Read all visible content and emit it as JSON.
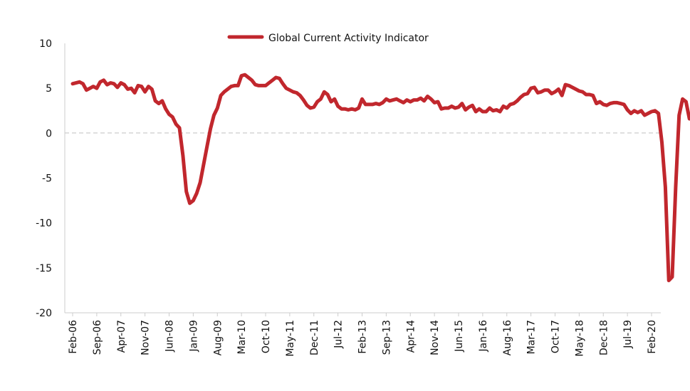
{
  "chart_data": {
    "type": "line",
    "title": "",
    "xlabel": "",
    "ylabel": "",
    "ylim": [
      -20,
      10
    ],
    "yticks": [
      10,
      5,
      0,
      -5,
      -10,
      -15,
      -20
    ],
    "xticks": [
      "Feb-06",
      "Sep-06",
      "Apr-07",
      "Nov-07",
      "Jun-08",
      "Jan-09",
      "Aug-09",
      "Mar-10",
      "Oct-10",
      "May-11",
      "Dec-11",
      "Jul-12",
      "Feb-13",
      "Sep-13",
      "Apr-14",
      "Nov-14",
      "Jun-15",
      "Jan-16",
      "Aug-16",
      "Mar-17",
      "Oct-17",
      "May-18",
      "Dec-18",
      "Jul-19",
      "Feb-20"
    ],
    "grid": false,
    "zero_line": "dashed",
    "legend": "top-center",
    "colors": {
      "series": "#c1272d",
      "axis": "#cccccc"
    },
    "series": [
      {
        "name": "Global Current Activity Indicator",
        "start": "Feb-06",
        "frequency": "monthly",
        "values": [
          5.5,
          5.6,
          5.7,
          5.5,
          4.8,
          5.0,
          5.2,
          5.0,
          5.7,
          5.9,
          5.4,
          5.6,
          5.5,
          5.1,
          5.6,
          5.4,
          4.9,
          5.0,
          4.5,
          5.3,
          5.2,
          4.6,
          5.2,
          4.9,
          3.6,
          3.3,
          3.6,
          2.7,
          2.1,
          1.8,
          1.0,
          0.6,
          -2.5,
          -6.5,
          -7.8,
          -7.5,
          -6.7,
          -5.5,
          -3.5,
          -1.5,
          0.5,
          2.0,
          2.8,
          4.2,
          4.6,
          4.9,
          5.2,
          5.3,
          5.3,
          6.4,
          6.5,
          6.2,
          5.9,
          5.4,
          5.3,
          5.3,
          5.3,
          5.6,
          5.9,
          6.2,
          6.1,
          5.5,
          5.0,
          4.8,
          4.6,
          4.5,
          4.2,
          3.7,
          3.1,
          2.8,
          2.9,
          3.5,
          3.8,
          4.6,
          4.3,
          3.5,
          3.8,
          3.0,
          2.7,
          2.7,
          2.6,
          2.7,
          2.6,
          2.8,
          3.8,
          3.2,
          3.2,
          3.2,
          3.3,
          3.2,
          3.4,
          3.8,
          3.6,
          3.7,
          3.8,
          3.6,
          3.4,
          3.7,
          3.5,
          3.7,
          3.7,
          3.9,
          3.6,
          4.1,
          3.8,
          3.4,
          3.5,
          2.7,
          2.8,
          2.8,
          3.0,
          2.8,
          2.9,
          3.3,
          2.6,
          2.9,
          3.1,
          2.4,
          2.7,
          2.4,
          2.4,
          2.8,
          2.5,
          2.6,
          2.4,
          3.0,
          2.8,
          3.2,
          3.3,
          3.6,
          4.0,
          4.3,
          4.4,
          5.0,
          5.1,
          4.5,
          4.6,
          4.8,
          4.8,
          4.4,
          4.6,
          4.9,
          4.2,
          5.4,
          5.3,
          5.1,
          4.9,
          4.7,
          4.6,
          4.3,
          4.3,
          4.2,
          3.3,
          3.5,
          3.2,
          3.1,
          3.3,
          3.4,
          3.4,
          3.3,
          3.2,
          2.6,
          2.2,
          2.5,
          2.3,
          2.5,
          2.0,
          2.2,
          2.4,
          2.5,
          2.2,
          -1.0,
          -6.0,
          -16.4,
          -16.0,
          -6.0,
          2.0,
          3.8,
          3.5,
          1.6
        ]
      }
    ]
  }
}
